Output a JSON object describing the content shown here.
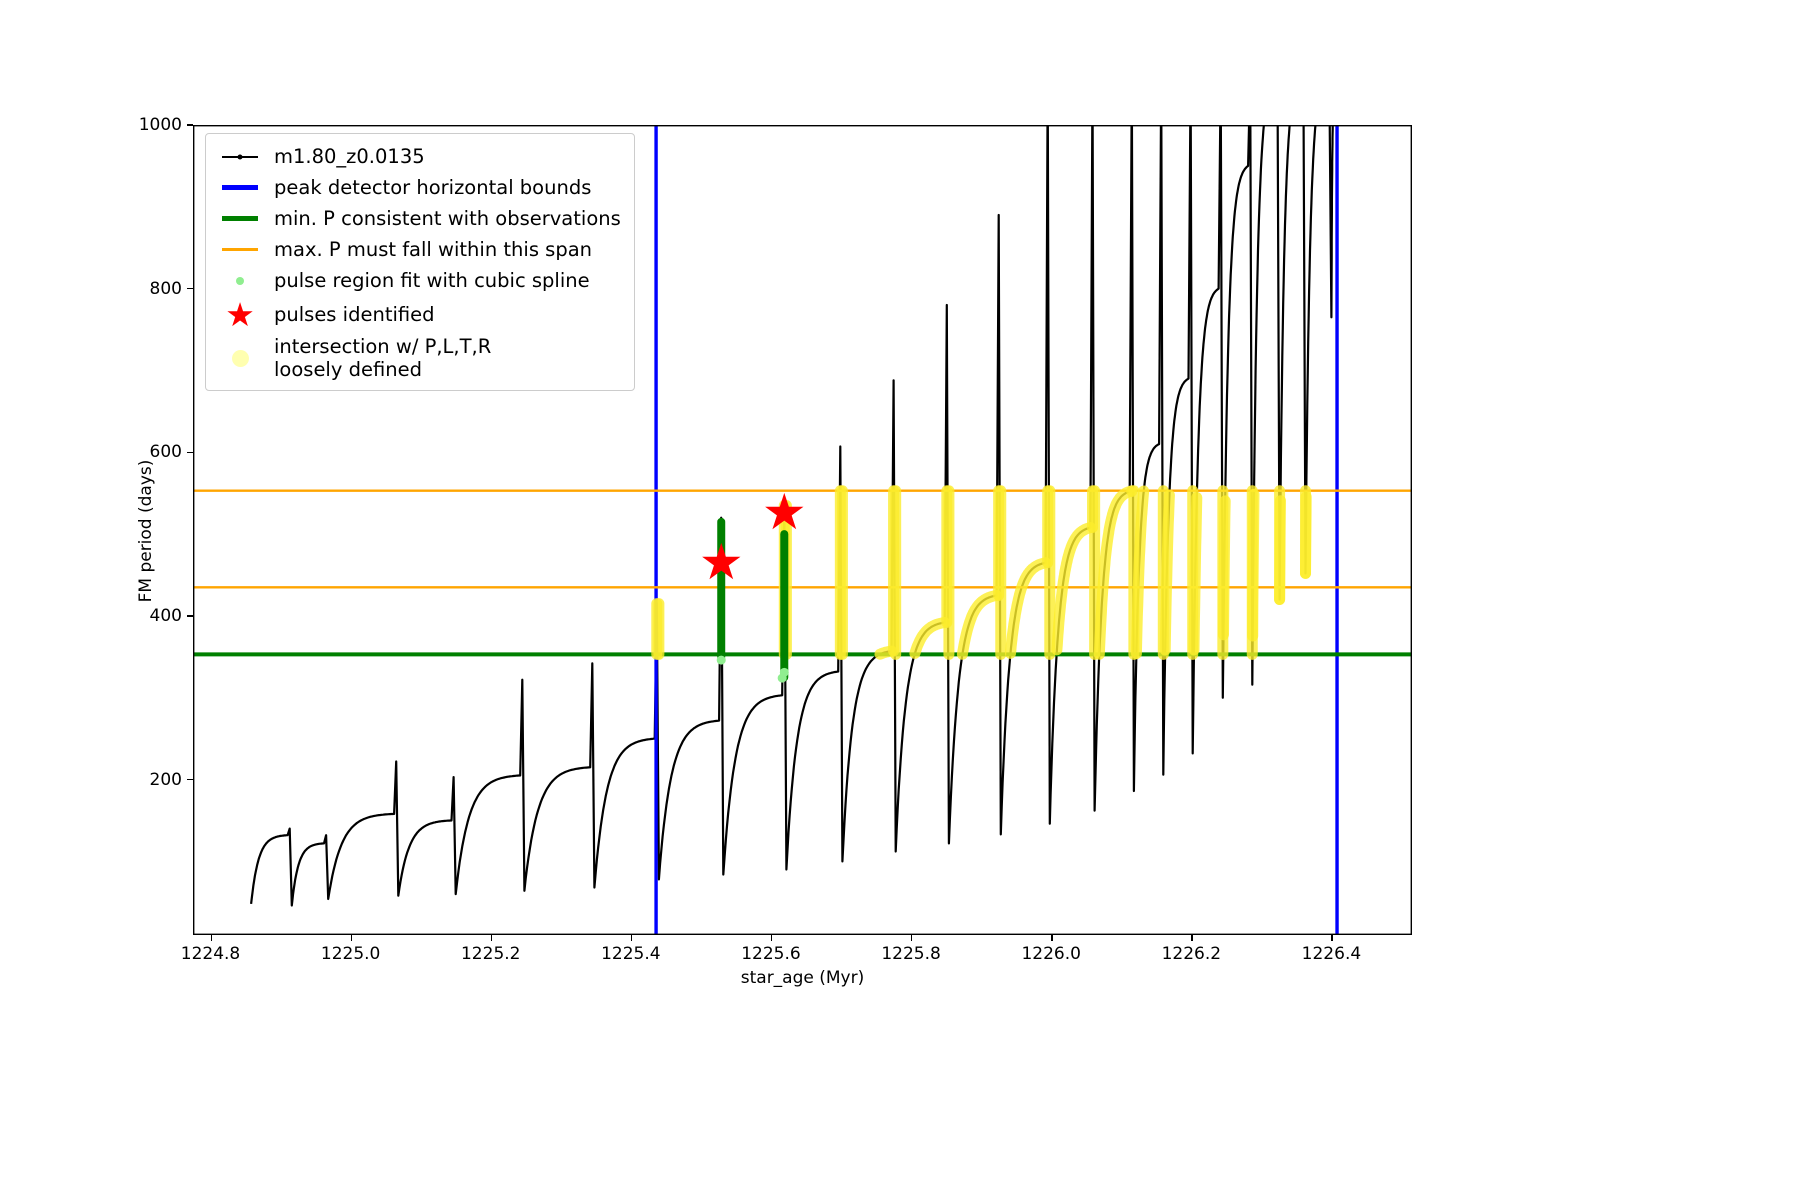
{
  "legend": {
    "items": [
      {
        "id": "series",
        "glyph": "line-dot",
        "color": "#000000",
        "icon": "line-marker-icon",
        "label": "m1.80_z0.0135"
      },
      {
        "id": "peak-bounds",
        "glyph": "band",
        "color": "#0000ff",
        "icon": "blue-line-icon",
        "label": "peak detector horizontal bounds"
      },
      {
        "id": "min-p",
        "glyph": "band",
        "color": "#008000",
        "icon": "green-line-icon",
        "label": "min. P consistent with observations"
      },
      {
        "id": "max-p",
        "glyph": "thin",
        "color": "#ffa500",
        "icon": "orange-line-icon",
        "label": "max. P must fall within this span"
      },
      {
        "id": "spline",
        "glyph": "dot",
        "size": 8,
        "color": "#90ee90",
        "icon": "lightgreen-dot-icon",
        "label": "pulse region fit with cubic spline"
      },
      {
        "id": "pulses",
        "glyph": "star",
        "color": "#ff0000",
        "icon": "red-star-icon",
        "label": "pulses identified"
      },
      {
        "id": "intersection",
        "glyph": "dot",
        "size": 17,
        "color": "#ffffb0",
        "icon": "yellow-dot-icon",
        "label": "intersection w/ P,L,T,R\nloosely defined"
      }
    ]
  },
  "chart_data": {
    "type": "line",
    "title": "",
    "xlabel": "star_age (Myr)",
    "ylabel": "FM period (days)",
    "xlim": [
      1224.775,
      1226.515
    ],
    "ylim": [
      10,
      1000
    ],
    "xticks": [
      {
        "value": 1224.8,
        "label": "1224.8"
      },
      {
        "value": 1225.0,
        "label": "1225.0"
      },
      {
        "value": 1225.2,
        "label": "1225.2"
      },
      {
        "value": 1225.4,
        "label": "1225.4"
      },
      {
        "value": 1225.6,
        "label": "1225.6"
      },
      {
        "value": 1225.8,
        "label": "1225.8"
      },
      {
        "value": 1226.0,
        "label": "1226.0"
      },
      {
        "value": 1226.2,
        "label": "1226.2"
      },
      {
        "value": 1226.4,
        "label": "1226.4"
      }
    ],
    "yticks": [
      {
        "value": 200,
        "label": "200"
      },
      {
        "value": 400,
        "label": "400"
      },
      {
        "value": 600,
        "label": "600"
      },
      {
        "value": 800,
        "label": "800"
      },
      {
        "value": 1000,
        "label": "1000"
      }
    ],
    "series_name": "m1.80_z0.0135",
    "series_color": "#000000",
    "star_color": "#ff0000",
    "spline_color": "#90ee90",
    "spline_color_dark": "#008000",
    "pulse_cycles": [
      {
        "x0": 1224.858,
        "lo": 48,
        "hi": 132,
        "spike": 140
      },
      {
        "x0": 1224.916,
        "lo": 46,
        "hi": 122,
        "spike": 132
      },
      {
        "x0": 1224.968,
        "lo": 54,
        "hi": 158,
        "spike": 222
      },
      {
        "x0": 1225.068,
        "lo": 58,
        "hi": 150,
        "spike": 203
      },
      {
        "x0": 1225.15,
        "lo": 60,
        "hi": 205,
        "spike": 322
      },
      {
        "x0": 1225.248,
        "lo": 64,
        "hi": 215,
        "spike": 342
      },
      {
        "x0": 1225.348,
        "lo": 68,
        "hi": 250,
        "spike": 415
      },
      {
        "x0": 1225.44,
        "lo": 78,
        "hi": 272,
        "spike": 520
      },
      {
        "x0": 1225.532,
        "lo": 84,
        "hi": 303,
        "spike": 535
      },
      {
        "x0": 1225.622,
        "lo": 90,
        "hi": 332,
        "spike": 607
      },
      {
        "x0": 1225.702,
        "lo": 100,
        "hi": 357,
        "spike": 688
      },
      {
        "x0": 1225.778,
        "lo": 112,
        "hi": 392,
        "spike": 780
      },
      {
        "x0": 1225.854,
        "lo": 122,
        "hi": 425,
        "spike": 890
      },
      {
        "x0": 1225.928,
        "lo": 133,
        "hi": 465,
        "spike": 1060
      },
      {
        "x0": 1225.998,
        "lo": 146,
        "hi": 508,
        "spike": 1060
      },
      {
        "x0": 1226.062,
        "lo": 162,
        "hi": 552,
        "spike": 1060
      },
      {
        "x0": 1226.118,
        "lo": 186,
        "hi": 610,
        "spike": 1060
      },
      {
        "x0": 1226.16,
        "lo": 206,
        "hi": 690,
        "spike": 1060
      },
      {
        "x0": 1226.202,
        "lo": 232,
        "hi": 800,
        "spike": 1060
      },
      {
        "x0": 1226.245,
        "lo": 300,
        "hi": 950,
        "spike": 1060
      },
      {
        "x0": 1226.287,
        "lo": 316,
        "hi": 1055,
        "spike": 1060
      },
      {
        "x0": 1226.326,
        "lo": 420,
        "hi": 1058,
        "spike": 1060
      },
      {
        "x0": 1226.363,
        "lo": 452,
        "hi": 1058,
        "spike": 1060
      },
      {
        "x0": 1226.4,
        "lo": 765,
        "hi": 1040,
        "spike": 1060,
        "xend": 1226.405
      }
    ],
    "vlines": {
      "label": "peak detector horizontal bounds",
      "color": "#0000ff",
      "x": [
        1225.436,
        1226.408
      ]
    },
    "hline_green": {
      "label": "min. P consistent with observations",
      "color": "#008000",
      "y": 353
    },
    "hlines_orange": {
      "label": "max. P must fall within this span",
      "color": "#ffa500",
      "y": [
        435,
        553
      ]
    },
    "yellow_band": {
      "label": "intersection w/ P,L,T,R loosely defined",
      "color": "#fced2c",
      "y": [
        353,
        553
      ],
      "x_regions": [
        [
          1225.432,
          1225.446
        ],
        [
          1225.612,
          1225.627
        ],
        [
          1225.69,
          1226.515
        ]
      ]
    },
    "green_columns": [
      {
        "x": 1225.529,
        "y0": 350,
        "y1": 515
      },
      {
        "x": 1225.619,
        "y0": 325,
        "y1": 500
      }
    ],
    "spline_dots": [
      {
        "x": 1225.529,
        "y": 346
      },
      {
        "x": 1225.619,
        "y": 331
      },
      {
        "x": 1225.616,
        "y": 324
      }
    ],
    "stars": [
      {
        "x": 1225.529,
        "y": 466
      },
      {
        "x": 1225.619,
        "y": 527
      }
    ]
  }
}
